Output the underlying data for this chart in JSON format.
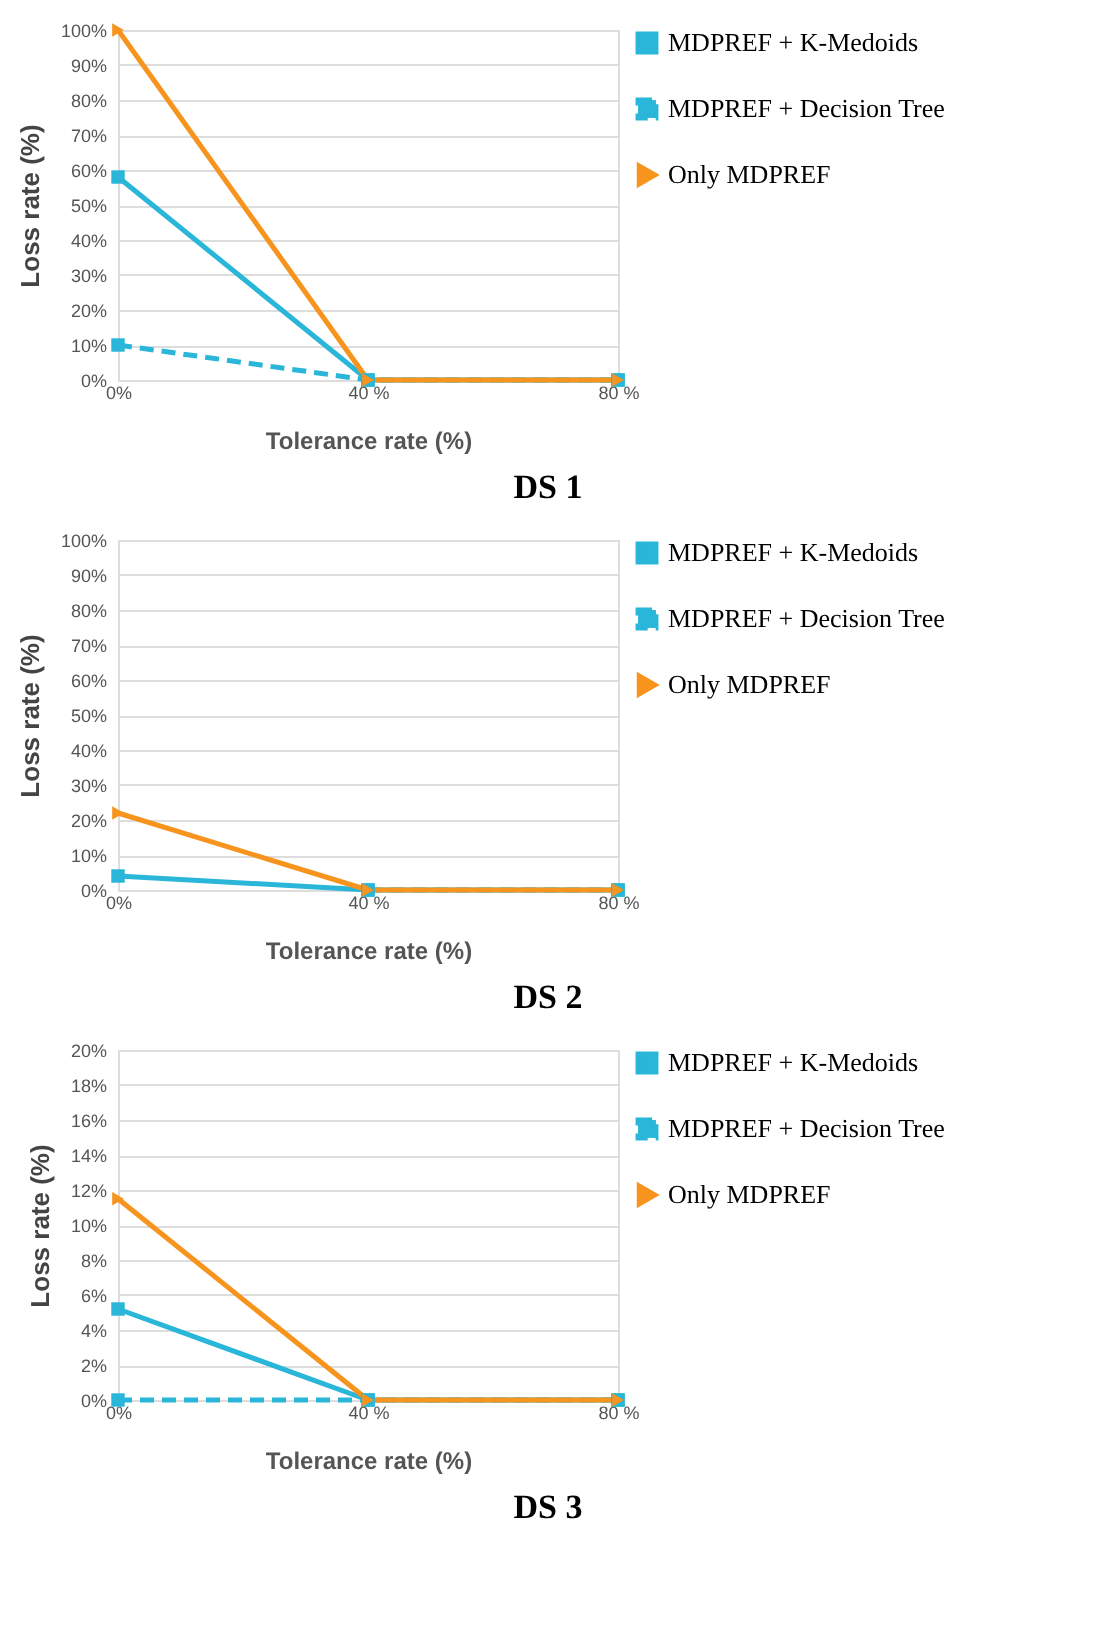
{
  "chart_data": [
    {
      "type": "line",
      "title": "DS 1",
      "xlabel": "Tolerance rate (%)",
      "ylabel": "Loss rate (%)",
      "categories": [
        "0%",
        "40 %",
        "80 %"
      ],
      "ylim": [
        0,
        100
      ],
      "yticks": [
        {
          "value": 0,
          "label": "0%"
        },
        {
          "value": 10,
          "label": "10%"
        },
        {
          "value": 20,
          "label": "20%"
        },
        {
          "value": 30,
          "label": "30%"
        },
        {
          "value": 40,
          "label": "40%"
        },
        {
          "value": 50,
          "label": "50%"
        },
        {
          "value": 60,
          "label": "60%"
        },
        {
          "value": 70,
          "label": "70%"
        },
        {
          "value": 80,
          "label": "80%"
        },
        {
          "value": 90,
          "label": "90%"
        },
        {
          "value": 100,
          "label": "100%"
        }
      ],
      "grid": "y",
      "legend": "right",
      "marker": "square",
      "series": [
        {
          "name": "MDPREF + K-Medoids",
          "color": "#29b6d8",
          "line_style": "solid",
          "values": [
            58,
            0,
            0
          ]
        },
        {
          "name": "MDPREF + Decision Tree",
          "color": "#29b6d8",
          "line_style": "dashed",
          "values": [
            10,
            0,
            0
          ]
        },
        {
          "name": "Only MDPREF",
          "color": "#f7941d",
          "line_style": "solid",
          "marker": "triangle",
          "values": [
            100,
            0,
            0
          ]
        }
      ]
    },
    {
      "type": "line",
      "title": "DS 2",
      "xlabel": "Tolerance rate (%)",
      "ylabel": "Loss rate (%)",
      "categories": [
        "0%",
        "40 %",
        "80 %"
      ],
      "ylim": [
        0,
        100
      ],
      "yticks": [
        {
          "value": 0,
          "label": "0%"
        },
        {
          "value": 10,
          "label": "10%"
        },
        {
          "value": 20,
          "label": "20%"
        },
        {
          "value": 30,
          "label": "30%"
        },
        {
          "value": 40,
          "label": "40%"
        },
        {
          "value": 50,
          "label": "50%"
        },
        {
          "value": 60,
          "label": "60%"
        },
        {
          "value": 70,
          "label": "70%"
        },
        {
          "value": 80,
          "label": "80%"
        },
        {
          "value": 90,
          "label": "90%"
        },
        {
          "value": 100,
          "label": "100%"
        }
      ],
      "grid": "y",
      "legend": "right",
      "marker": "square",
      "series": [
        {
          "name": "MDPREF + K-Medoids",
          "color": "#29b6d8",
          "line_style": "solid",
          "values": [
            4,
            0,
            0
          ]
        },
        {
          "name": "MDPREF + Decision Tree",
          "color": "#29b6d8",
          "line_style": "dashed",
          "values": [
            null,
            0,
            0
          ]
        },
        {
          "name": "Only MDPREF",
          "color": "#f7941d",
          "line_style": "solid",
          "marker": "triangle",
          "values": [
            22,
            0,
            0
          ]
        }
      ]
    },
    {
      "type": "line",
      "title": "DS 3",
      "xlabel": "Tolerance rate (%)",
      "ylabel": "Loss rate (%)",
      "categories": [
        "0%",
        "40 %",
        "80 %"
      ],
      "ylim": [
        0,
        20
      ],
      "yticks": [
        {
          "value": 0,
          "label": "0%"
        },
        {
          "value": 2,
          "label": "2%"
        },
        {
          "value": 4,
          "label": "4%"
        },
        {
          "value": 6,
          "label": "6%"
        },
        {
          "value": 8,
          "label": "8%"
        },
        {
          "value": 10,
          "label": "10%"
        },
        {
          "value": 12,
          "label": "12%"
        },
        {
          "value": 14,
          "label": "14%"
        },
        {
          "value": 16,
          "label": "16%"
        },
        {
          "value": 18,
          "label": "18%"
        },
        {
          "value": 20,
          "label": "20%"
        }
      ],
      "grid": "y",
      "legend": "right",
      "marker": "square",
      "series": [
        {
          "name": "MDPREF + K-Medoids",
          "color": "#29b6d8",
          "line_style": "solid",
          "values": [
            5.2,
            0,
            0
          ]
        },
        {
          "name": "MDPREF + Decision Tree",
          "color": "#29b6d8",
          "line_style": "dashed",
          "values": [
            0,
            0,
            0
          ]
        },
        {
          "name": "Only MDPREF",
          "color": "#f7941d",
          "line_style": "solid",
          "marker": "triangle",
          "values": [
            11.5,
            0,
            0
          ]
        }
      ]
    }
  ]
}
